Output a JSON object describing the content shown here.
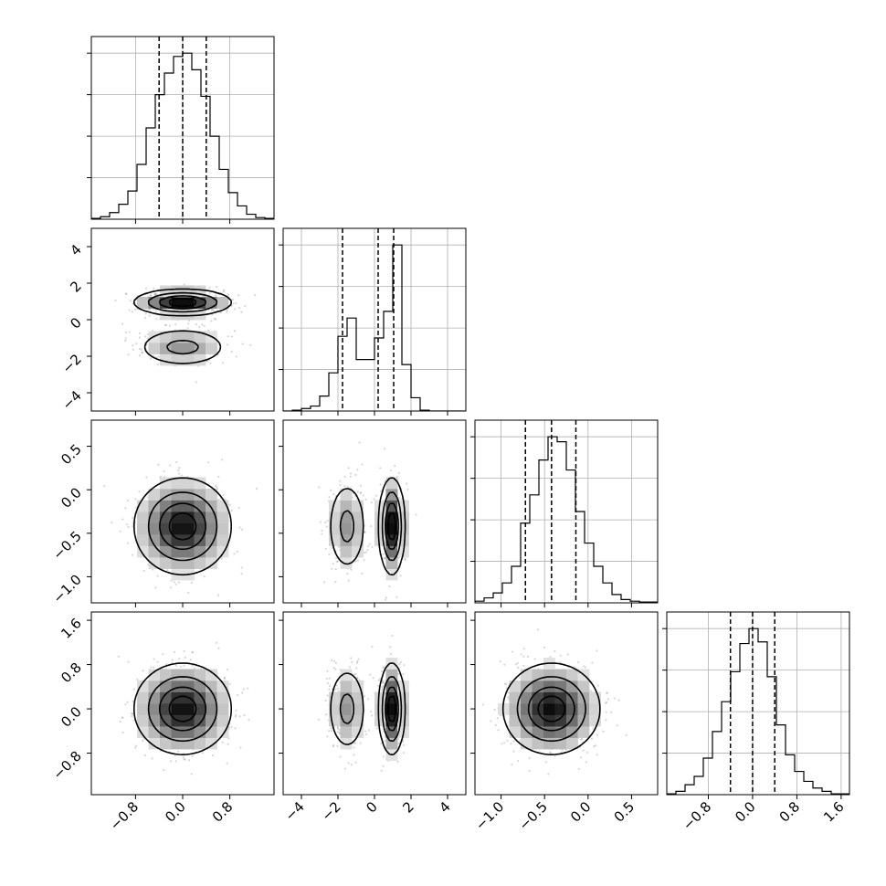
{
  "chart_data": {
    "type": "corner",
    "title": "",
    "parameters": [
      {
        "index": 0,
        "range": [
          -1.55,
          1.55
        ],
        "ticks": [
          -0.8,
          0.0,
          0.8
        ],
        "tick_labels": [
          "−0.8",
          "0.0",
          "0.8"
        ],
        "quantiles": [
          -0.4,
          0.0,
          0.4
        ],
        "hist_bins": [
          -1.55,
          -1.395,
          -1.24,
          -1.085,
          -0.93,
          -0.775,
          -0.62,
          -0.465,
          -0.31,
          -0.155,
          0,
          0.155,
          0.31,
          0.465,
          0.62,
          0.775,
          0.93,
          1.085,
          1.24,
          1.395,
          1.55
        ],
        "hist_counts": [
          0.5,
          1.5,
          4,
          9,
          17,
          33,
          55,
          75,
          88,
          98,
          100,
          90,
          74,
          50,
          30,
          16,
          8,
          3,
          1,
          0.5
        ],
        "mean": [
          0.0
        ],
        "sd": [
          0.4
        ],
        "w": [
          1
        ]
      },
      {
        "index": 1,
        "range": [
          -5.0,
          5.0
        ],
        "ticks": [
          -4,
          -2,
          0,
          2,
          4
        ],
        "tick_labels": [
          "−4",
          "−2",
          "0",
          "2",
          "4"
        ],
        "quantiles": [
          -1.75,
          0.2,
          1.05
        ],
        "hist_bins": [
          -5,
          -4.5,
          -4,
          -3.5,
          -3,
          -2.5,
          -2,
          -1.5,
          -1,
          -0.5,
          0,
          0.5,
          1,
          1.5,
          2,
          2.5,
          3,
          3.5,
          4,
          4.5,
          5
        ],
        "hist_counts": [
          0,
          0.5,
          1.5,
          3,
          9,
          23,
          45,
          56,
          31,
          31,
          44,
          60,
          100,
          28,
          8,
          0.5,
          0,
          0,
          0,
          0
        ],
        "mean": [
          -1.5,
          0.95
        ],
        "sd": [
          0.55,
          0.35
        ],
        "w": [
          0.4,
          0.6
        ]
      },
      {
        "index": 2,
        "range": [
          -1.3,
          0.8
        ],
        "ticks": [
          -1.0,
          -0.5,
          0.0,
          0.5
        ],
        "tick_labels": [
          "−1.0",
          "−0.5",
          "0.0",
          "0.5"
        ],
        "quantiles": [
          -0.72,
          -0.42,
          -0.14
        ],
        "hist_bins": [
          -1.3,
          -1.195,
          -1.09,
          -0.985,
          -0.88,
          -0.775,
          -0.67,
          -0.565,
          -0.46,
          -0.355,
          -0.25,
          -0.145,
          -0.04,
          0.065,
          0.17,
          0.275,
          0.38,
          0.485,
          0.59,
          0.695,
          0.8
        ],
        "hist_counts": [
          1,
          3,
          6,
          12,
          22,
          48,
          65,
          86,
          100,
          97,
          80,
          55,
          36,
          22,
          12,
          5,
          2,
          1,
          0.5,
          0.5
        ],
        "mean": [
          -0.42
        ],
        "sd": [
          0.27
        ],
        "w": [
          1
        ]
      },
      {
        "index": 3,
        "range": [
          -1.55,
          1.75
        ],
        "ticks": [
          -0.8,
          0.0,
          0.8,
          1.6
        ],
        "tick_labels": [
          "−0.8",
          "0.0",
          "0.8",
          "1.6"
        ],
        "quantiles": [
          -0.4,
          0.0,
          0.4
        ],
        "hist_bins": [
          -1.55,
          -1.385,
          -1.22,
          -1.055,
          -0.89,
          -0.725,
          -0.56,
          -0.395,
          -0.23,
          -0.065,
          0.1,
          0.265,
          0.43,
          0.595,
          0.76,
          0.925,
          1.09,
          1.255,
          1.42,
          1.585,
          1.75
        ],
        "hist_counts": [
          0.5,
          2,
          6,
          11,
          22,
          38,
          56,
          74,
          91,
          100,
          92,
          71,
          42,
          24,
          14,
          8,
          4,
          2,
          0.5,
          0.5
        ],
        "mean": [
          0.0
        ],
        "sd": [
          0.4
        ],
        "w": [
          1
        ]
      }
    ]
  }
}
